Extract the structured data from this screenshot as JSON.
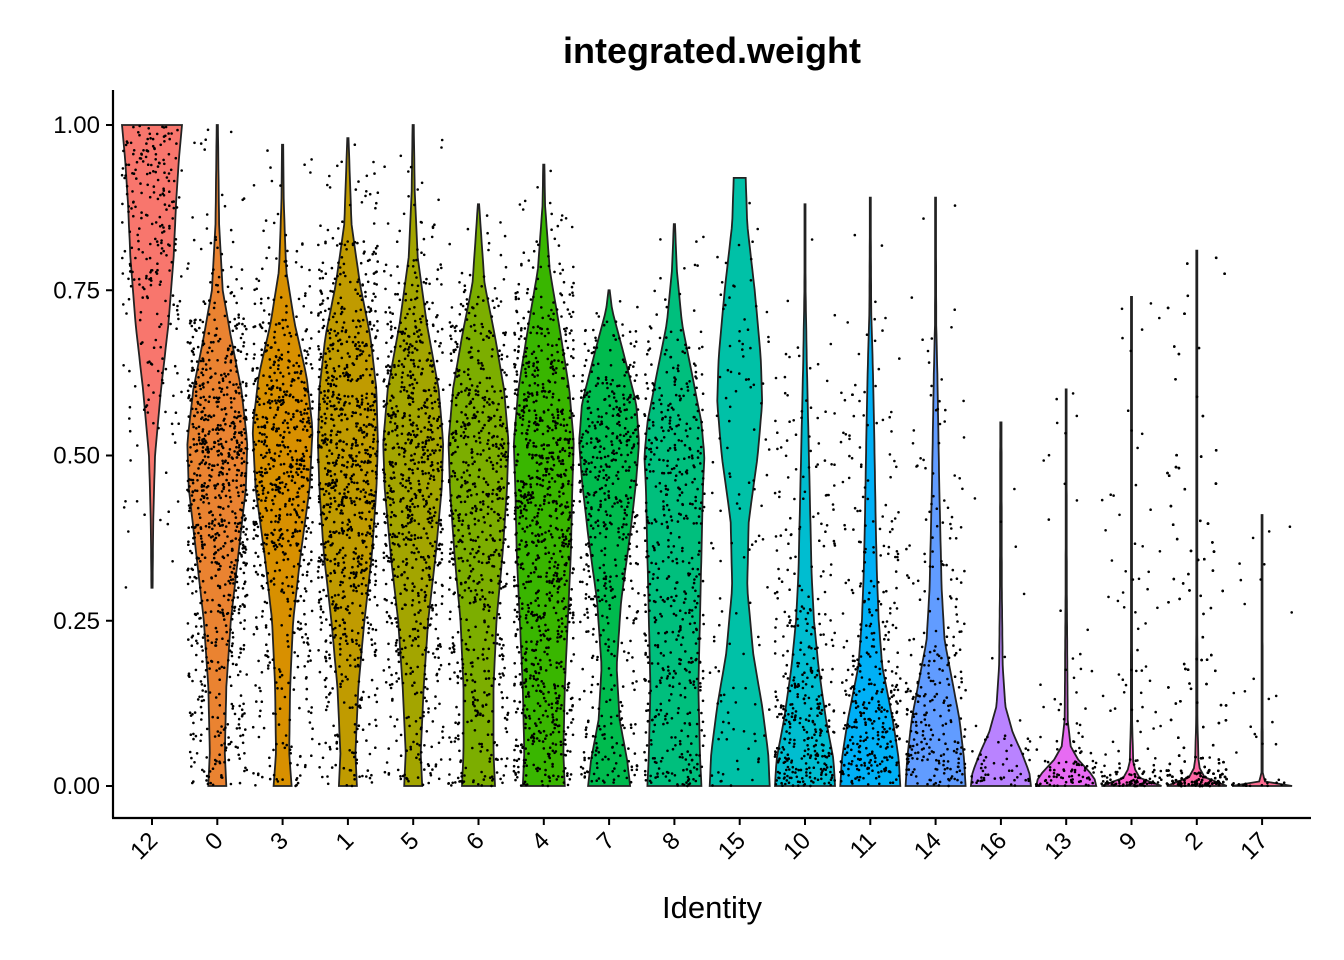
{
  "chart_data": {
    "type": "violin",
    "title": "integrated.weight",
    "xlabel": "Identity",
    "ylabel": "",
    "ylim": [
      -0.05,
      1.05
    ],
    "yticks": [
      0.0,
      0.25,
      0.5,
      0.75,
      1.0
    ],
    "ytick_labels": [
      "0.00",
      "0.25",
      "0.50",
      "0.75",
      "1.00"
    ],
    "groups": [
      {
        "name": "12",
        "color": "#F8766D",
        "min": 0.3,
        "max": 1.0,
        "n_points": 260,
        "profile": [
          [
            0.3,
            0.02
          ],
          [
            0.4,
            0.04
          ],
          [
            0.5,
            0.1
          ],
          [
            0.6,
            0.3
          ],
          [
            0.7,
            0.55
          ],
          [
            0.8,
            0.72
          ],
          [
            0.88,
            0.8
          ],
          [
            0.95,
            0.9
          ],
          [
            1.0,
            1.0
          ]
        ]
      },
      {
        "name": "0",
        "color": "#EA8331",
        "min": 0.0,
        "max": 1.0,
        "n_points": 900,
        "profile": [
          [
            0.0,
            0.3
          ],
          [
            0.05,
            0.25
          ],
          [
            0.15,
            0.3
          ],
          [
            0.25,
            0.45
          ],
          [
            0.35,
            0.7
          ],
          [
            0.45,
            0.95
          ],
          [
            0.52,
            1.0
          ],
          [
            0.6,
            0.8
          ],
          [
            0.68,
            0.45
          ],
          [
            0.75,
            0.18
          ],
          [
            0.85,
            0.06
          ],
          [
            1.0,
            0.02
          ]
        ]
      },
      {
        "name": "3",
        "color": "#D89000",
        "min": 0.0,
        "max": 0.97,
        "n_points": 700,
        "profile": [
          [
            0.0,
            0.3
          ],
          [
            0.05,
            0.22
          ],
          [
            0.15,
            0.25
          ],
          [
            0.25,
            0.35
          ],
          [
            0.35,
            0.6
          ],
          [
            0.45,
            0.9
          ],
          [
            0.54,
            1.0
          ],
          [
            0.62,
            0.8
          ],
          [
            0.7,
            0.4
          ],
          [
            0.78,
            0.12
          ],
          [
            0.88,
            0.04
          ],
          [
            0.97,
            0.02
          ]
        ]
      },
      {
        "name": "1",
        "color": "#C09B00",
        "min": 0.0,
        "max": 0.98,
        "n_points": 950,
        "profile": [
          [
            0.0,
            0.3
          ],
          [
            0.05,
            0.25
          ],
          [
            0.15,
            0.35
          ],
          [
            0.25,
            0.55
          ],
          [
            0.35,
            0.8
          ],
          [
            0.45,
            0.95
          ],
          [
            0.52,
            1.0
          ],
          [
            0.6,
            0.95
          ],
          [
            0.68,
            0.75
          ],
          [
            0.76,
            0.4
          ],
          [
            0.85,
            0.12
          ],
          [
            0.98,
            0.02
          ]
        ]
      },
      {
        "name": "5",
        "color": "#A3A500",
        "min": 0.0,
        "max": 1.0,
        "n_points": 800,
        "profile": [
          [
            0.0,
            0.3
          ],
          [
            0.05,
            0.25
          ],
          [
            0.15,
            0.35
          ],
          [
            0.25,
            0.5
          ],
          [
            0.35,
            0.75
          ],
          [
            0.45,
            0.95
          ],
          [
            0.52,
            1.0
          ],
          [
            0.6,
            0.85
          ],
          [
            0.7,
            0.45
          ],
          [
            0.8,
            0.15
          ],
          [
            0.9,
            0.05
          ],
          [
            1.0,
            0.02
          ]
        ]
      },
      {
        "name": "6",
        "color": "#7CAE00",
        "min": 0.0,
        "max": 0.88,
        "n_points": 700,
        "profile": [
          [
            0.0,
            0.55
          ],
          [
            0.05,
            0.5
          ],
          [
            0.15,
            0.5
          ],
          [
            0.25,
            0.6
          ],
          [
            0.35,
            0.8
          ],
          [
            0.45,
            0.95
          ],
          [
            0.52,
            1.0
          ],
          [
            0.6,
            0.85
          ],
          [
            0.68,
            0.55
          ],
          [
            0.76,
            0.2
          ],
          [
            0.88,
            0.02
          ]
        ]
      },
      {
        "name": "4",
        "color": "#39B600",
        "min": 0.0,
        "max": 0.94,
        "n_points": 1000,
        "profile": [
          [
            0.0,
            0.7
          ],
          [
            0.05,
            0.65
          ],
          [
            0.15,
            0.7
          ],
          [
            0.25,
            0.8
          ],
          [
            0.35,
            0.9
          ],
          [
            0.45,
            0.95
          ],
          [
            0.52,
            1.0
          ],
          [
            0.6,
            0.85
          ],
          [
            0.7,
            0.5
          ],
          [
            0.78,
            0.2
          ],
          [
            0.88,
            0.04
          ],
          [
            0.94,
            0.02
          ]
        ]
      },
      {
        "name": "7",
        "color": "#00BB4E",
        "min": 0.0,
        "max": 0.75,
        "n_points": 550,
        "profile": [
          [
            0.0,
            0.7
          ],
          [
            0.04,
            0.6
          ],
          [
            0.1,
            0.35
          ],
          [
            0.18,
            0.25
          ],
          [
            0.28,
            0.4
          ],
          [
            0.38,
            0.7
          ],
          [
            0.46,
            0.9
          ],
          [
            0.52,
            1.0
          ],
          [
            0.58,
            0.9
          ],
          [
            0.66,
            0.45
          ],
          [
            0.72,
            0.1
          ],
          [
            0.75,
            0.02
          ]
        ]
      },
      {
        "name": "8",
        "color": "#00BF7D",
        "min": 0.0,
        "max": 0.85,
        "n_points": 550,
        "profile": [
          [
            0.0,
            0.9
          ],
          [
            0.05,
            0.85
          ],
          [
            0.15,
            0.8
          ],
          [
            0.25,
            0.85
          ],
          [
            0.35,
            0.9
          ],
          [
            0.45,
            0.95
          ],
          [
            0.5,
            1.0
          ],
          [
            0.55,
            0.9
          ],
          [
            0.62,
            0.6
          ],
          [
            0.7,
            0.25
          ],
          [
            0.78,
            0.08
          ],
          [
            0.85,
            0.02
          ]
        ]
      },
      {
        "name": "15",
        "color": "#00C1A7",
        "min": 0.0,
        "max": 0.92,
        "n_points": 120,
        "profile": [
          [
            0.0,
            1.0
          ],
          [
            0.05,
            0.95
          ],
          [
            0.12,
            0.75
          ],
          [
            0.2,
            0.45
          ],
          [
            0.3,
            0.25
          ],
          [
            0.4,
            0.3
          ],
          [
            0.5,
            0.6
          ],
          [
            0.58,
            0.75
          ],
          [
            0.65,
            0.7
          ],
          [
            0.75,
            0.5
          ],
          [
            0.85,
            0.25
          ],
          [
            0.92,
            0.2
          ]
        ]
      },
      {
        "name": "10",
        "color": "#00BDD0",
        "min": 0.0,
        "max": 0.88,
        "n_points": 400,
        "profile": [
          [
            0.0,
            1.0
          ],
          [
            0.04,
            0.95
          ],
          [
            0.1,
            0.7
          ],
          [
            0.18,
            0.45
          ],
          [
            0.25,
            0.3
          ],
          [
            0.32,
            0.22
          ],
          [
            0.4,
            0.18
          ],
          [
            0.48,
            0.14
          ],
          [
            0.56,
            0.1
          ],
          [
            0.64,
            0.06
          ],
          [
            0.75,
            0.02
          ],
          [
            0.88,
            0.01
          ]
        ]
      },
      {
        "name": "11",
        "color": "#00B0F6",
        "min": 0.0,
        "max": 0.89,
        "n_points": 380,
        "profile": [
          [
            0.0,
            1.0
          ],
          [
            0.04,
            0.95
          ],
          [
            0.1,
            0.75
          ],
          [
            0.18,
            0.4
          ],
          [
            0.25,
            0.28
          ],
          [
            0.32,
            0.22
          ],
          [
            0.4,
            0.18
          ],
          [
            0.48,
            0.15
          ],
          [
            0.56,
            0.12
          ],
          [
            0.64,
            0.08
          ],
          [
            0.72,
            0.03
          ],
          [
            0.89,
            0.01
          ]
        ]
      },
      {
        "name": "14",
        "color": "#619CFF",
        "min": 0.0,
        "max": 0.89,
        "n_points": 280,
        "profile": [
          [
            0.0,
            1.0
          ],
          [
            0.04,
            0.95
          ],
          [
            0.1,
            0.8
          ],
          [
            0.16,
            0.55
          ],
          [
            0.22,
            0.3
          ],
          [
            0.3,
            0.2
          ],
          [
            0.38,
            0.16
          ],
          [
            0.46,
            0.12
          ],
          [
            0.54,
            0.09
          ],
          [
            0.62,
            0.06
          ],
          [
            0.7,
            0.02
          ],
          [
            0.89,
            0.01
          ]
        ]
      },
      {
        "name": "16",
        "color": "#B983FF",
        "min": 0.0,
        "max": 0.55,
        "n_points": 60,
        "profile": [
          [
            0.0,
            1.0
          ],
          [
            0.02,
            0.95
          ],
          [
            0.05,
            0.7
          ],
          [
            0.08,
            0.4
          ],
          [
            0.12,
            0.15
          ],
          [
            0.18,
            0.06
          ],
          [
            0.3,
            0.03
          ],
          [
            0.55,
            0.02
          ]
        ]
      },
      {
        "name": "13",
        "color": "#E76BF3",
        "min": 0.0,
        "max": 0.6,
        "n_points": 110,
        "profile": [
          [
            0.0,
            1.0
          ],
          [
            0.01,
            0.95
          ],
          [
            0.02,
            0.8
          ],
          [
            0.04,
            0.4
          ],
          [
            0.06,
            0.15
          ],
          [
            0.1,
            0.05
          ],
          [
            0.3,
            0.02
          ],
          [
            0.6,
            0.01
          ]
        ]
      },
      {
        "name": "9",
        "color": "#FD61D1",
        "min": 0.0,
        "max": 0.74,
        "n_points": 150,
        "profile": [
          [
            0.0,
            1.0
          ],
          [
            0.005,
            0.9
          ],
          [
            0.01,
            0.3
          ],
          [
            0.03,
            0.06
          ],
          [
            0.1,
            0.02
          ],
          [
            0.74,
            0.01
          ]
        ]
      },
      {
        "name": "2",
        "color": "#FF67A4",
        "min": 0.0,
        "max": 0.81,
        "n_points": 450,
        "profile": [
          [
            0.0,
            1.0
          ],
          [
            0.005,
            0.9
          ],
          [
            0.01,
            0.3
          ],
          [
            0.03,
            0.06
          ],
          [
            0.1,
            0.02
          ],
          [
            0.81,
            0.01
          ]
        ]
      },
      {
        "name": "17",
        "color": "#FF6C91",
        "min": 0.0,
        "max": 0.41,
        "n_points": 40,
        "profile": [
          [
            0.0,
            1.0
          ],
          [
            0.003,
            0.8
          ],
          [
            0.006,
            0.1
          ],
          [
            0.02,
            0.02
          ],
          [
            0.41,
            0.01
          ]
        ]
      }
    ]
  }
}
